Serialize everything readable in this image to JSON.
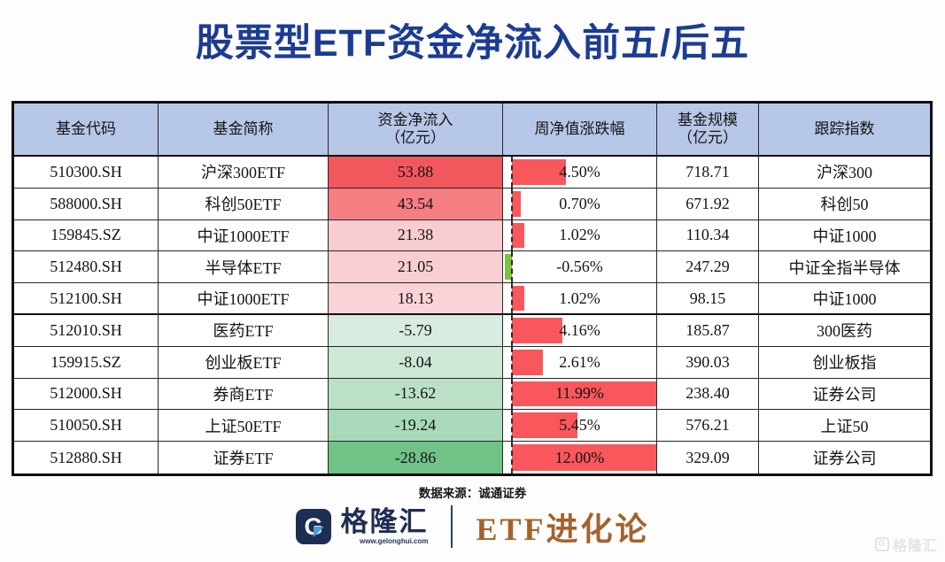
{
  "title": "股票型ETF资金净流入前五/后五",
  "source_note": "数据来源：诚通证券",
  "colors": {
    "title_blue": "#1c3c94",
    "header_bg": "#b7c7e7",
    "bar_positive": "#f8575c",
    "bar_negative": "#7ec242",
    "brand_navy": "#1d2e52",
    "slogan_bronze": "#a2642c"
  },
  "table": {
    "headers": [
      "基金代码",
      "基金简称",
      "资金净流入\n（亿元）",
      "周净值涨跌幅",
      "基金规模\n（亿元）",
      "跟踪指数"
    ],
    "rows": [
      {
        "code": "510300.SH",
        "name": "沪深300ETF",
        "flow": "53.88",
        "flow_bg": "#f2575e",
        "change_pct": 4.5,
        "change_label": "4.50%",
        "size": "718.71",
        "index": "沪深300"
      },
      {
        "code": "588000.SH",
        "name": "科创50ETF",
        "flow": "43.54",
        "flow_bg": "#f57e82",
        "change_pct": 0.7,
        "change_label": "0.70%",
        "size": "671.92",
        "index": "科创50"
      },
      {
        "code": "159845.SZ",
        "name": "中证1000ETF",
        "flow": "21.38",
        "flow_bg": "#f8ccd1",
        "change_pct": 1.02,
        "change_label": "1.02%",
        "size": "110.34",
        "index": "中证1000"
      },
      {
        "code": "512480.SH",
        "name": "半导体ETF",
        "flow": "21.05",
        "flow_bg": "#f8ced3",
        "change_pct": -0.56,
        "change_label": "-0.56%",
        "size": "247.29",
        "index": "中证全指半导体"
      },
      {
        "code": "512100.SH",
        "name": "中证1000ETF",
        "flow": "18.13",
        "flow_bg": "#f9d3d7",
        "change_pct": 1.02,
        "change_label": "1.02%",
        "size": "98.15",
        "index": "中证1000"
      },
      {
        "code": "512010.SH",
        "name": "医药ETF",
        "flow": "-5.79",
        "flow_bg": "#d8ecdf",
        "change_pct": 4.16,
        "change_label": "4.16%",
        "size": "185.87",
        "index": "300医药"
      },
      {
        "code": "159915.SZ",
        "name": "创业板ETF",
        "flow": "-8.04",
        "flow_bg": "#cde8d6",
        "change_pct": 2.61,
        "change_label": "2.61%",
        "size": "390.03",
        "index": "创业板指"
      },
      {
        "code": "512000.SH",
        "name": "券商ETF",
        "flow": "-13.62",
        "flow_bg": "#bbe0c7",
        "change_pct": 11.99,
        "change_label": "11.99%",
        "size": "238.40",
        "index": "证券公司"
      },
      {
        "code": "510050.SH",
        "name": "上证50ETF",
        "flow": "-19.24",
        "flow_bg": "#a8dab9",
        "change_pct": 5.45,
        "change_label": "5.45%",
        "size": "576.21",
        "index": "上证50"
      },
      {
        "code": "512880.SH",
        "name": "证券ETF",
        "flow": "-28.86",
        "flow_bg": "#70c287",
        "change_pct": 12.0,
        "change_label": "12.00%",
        "size": "329.09",
        "index": "证券公司"
      }
    ]
  },
  "footer": {
    "brand_name": "格隆汇",
    "brand_url": "www.gelonghui.com",
    "brand_slogan": "ETF进化论"
  },
  "watermark": {
    "icon_letter": "G",
    "label": "格隆汇"
  },
  "chart_data": {
    "type": "table",
    "title": "股票型ETF资金净流入前五/后五",
    "columns": [
      "基金代码",
      "基金简称",
      "资金净流入（亿元）",
      "周净值涨跌幅",
      "基金规模（亿元）",
      "跟踪指数"
    ],
    "rows": [
      [
        "510300.SH",
        "沪深300ETF",
        53.88,
        "4.50%",
        718.71,
        "沪深300"
      ],
      [
        "588000.SH",
        "科创50ETF",
        43.54,
        "0.70%",
        671.92,
        "科创50"
      ],
      [
        "159845.SZ",
        "中证1000ETF",
        21.38,
        "1.02%",
        110.34,
        "中证1000"
      ],
      [
        "512480.SH",
        "半导体ETF",
        21.05,
        "-0.56%",
        247.29,
        "中证全指半导体"
      ],
      [
        "512100.SH",
        "中证1000ETF",
        18.13,
        "1.02%",
        98.15,
        "中证1000"
      ],
      [
        "512010.SH",
        "医药ETF",
        -5.79,
        "4.16%",
        185.87,
        "300医药"
      ],
      [
        "159915.SZ",
        "创业板ETF",
        -8.04,
        "2.61%",
        390.03,
        "创业板指"
      ],
      [
        "512000.SH",
        "券商ETF",
        -13.62,
        "11.99%",
        238.4,
        "证券公司"
      ],
      [
        "510050.SH",
        "上证50ETF",
        -19.24,
        "5.45%",
        576.21,
        "上证50"
      ],
      [
        "512880.SH",
        "证券ETF",
        -28.86,
        "12.00%",
        329.09,
        "证券公司"
      ]
    ],
    "embedded_visuals": {
      "flow_column_color_scale": "red shades for positive inflow, green shades for negative outflow",
      "change_column_databar": {
        "max_pct": 12.0,
        "positive_color": "#f8575c",
        "negative_color": "#7ec242",
        "zero_axis": "dashed"
      }
    },
    "source": "数据来源：诚通证券"
  }
}
